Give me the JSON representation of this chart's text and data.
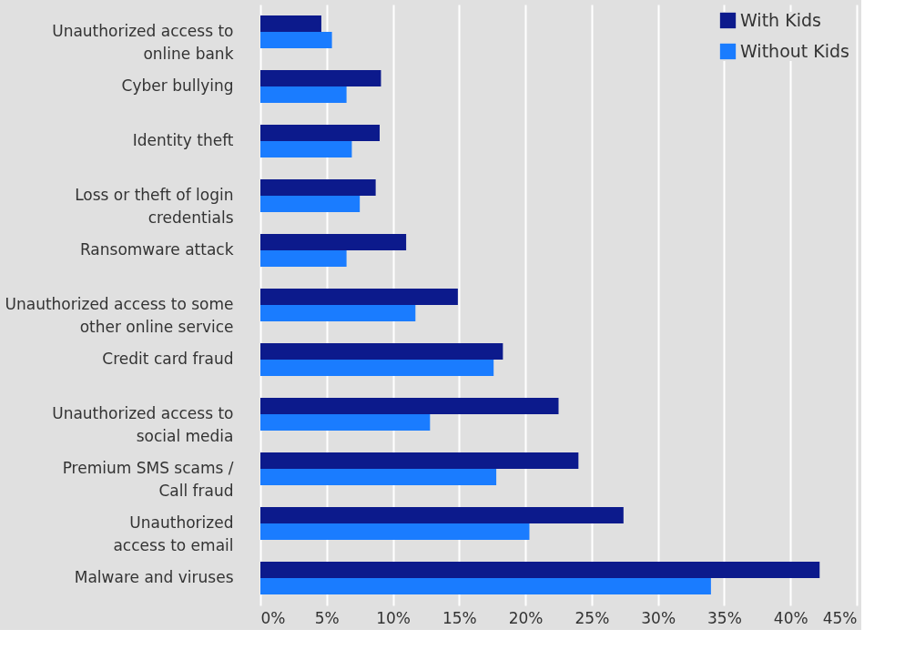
{
  "chart_data": {
    "type": "bar",
    "orientation": "horizontal",
    "categories": [
      "Unauthorized access to\nonline bank",
      "Cyber bullying",
      "Identity theft",
      "Loss or theft of login\ncredentials",
      "Ransomware attack",
      "Unauthorized access to some\nother online service",
      "Credit card fraud",
      "Unauthorized access to\nsocial media",
      "Premium SMS scams /\nCall fraud",
      "Unauthorized\naccess to email",
      "Malware and viruses"
    ],
    "series": [
      {
        "name": "With Kids",
        "color": "#0c1a8c",
        "values": [
          4.6,
          9.1,
          9.0,
          8.7,
          11.0,
          14.9,
          18.3,
          22.5,
          24.0,
          27.4,
          42.2
        ]
      },
      {
        "name": "Without Kids",
        "color": "#1a7cff",
        "values": [
          5.4,
          6.5,
          6.9,
          7.5,
          6.5,
          11.7,
          17.6,
          12.8,
          17.8,
          20.3,
          34.0
        ]
      }
    ],
    "xlim": [
      0,
      45
    ],
    "xticks": [
      {
        "value": 0,
        "label": "0%"
      },
      {
        "value": 5,
        "label": "5%"
      },
      {
        "value": 10,
        "label": "10%"
      },
      {
        "value": 15,
        "label": "15%"
      },
      {
        "value": 20,
        "label": "20%"
      },
      {
        "value": 25,
        "label": "25%"
      },
      {
        "value": 30,
        "label": "30%"
      },
      {
        "value": 35,
        "label": "35%"
      },
      {
        "value": 40,
        "label": "40%"
      },
      {
        "value": 45,
        "label": "45%"
      }
    ],
    "grid": "x",
    "legend": "top right"
  }
}
